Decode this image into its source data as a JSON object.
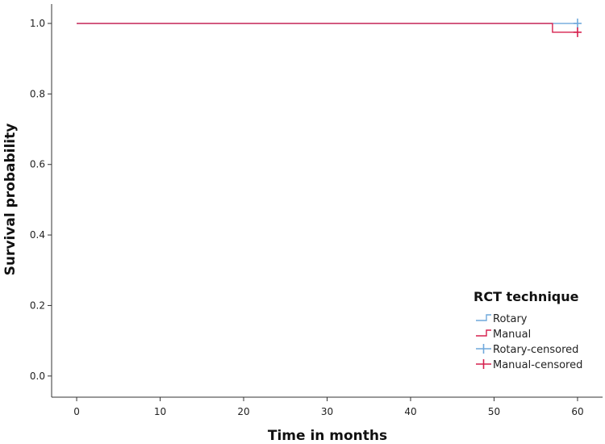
{
  "chart_data": {
    "type": "line",
    "title": "",
    "xlabel": "Time in months",
    "ylabel": "Survival probability",
    "xlim": [
      -3,
      63
    ],
    "ylim": [
      -0.06,
      1.055
    ],
    "x_ticks": [
      0,
      10,
      20,
      30,
      40,
      50,
      60
    ],
    "y_ticks": [
      0.0,
      0.2,
      0.4,
      0.6,
      0.8,
      1.0
    ],
    "y_tick_labels": [
      "0.0",
      "0.2",
      "0.4",
      "0.6",
      "0.8",
      "1.0"
    ],
    "grid": false,
    "step": true,
    "legend": {
      "title": "RCT technique",
      "placement": "bottom-right",
      "entries": [
        "Rotary",
        "Manual",
        "Rotary-censored",
        "Manual-censored"
      ]
    },
    "series": [
      {
        "name": "Rotary",
        "color": "#6fa8dc",
        "points": [
          {
            "x": 0,
            "y": 1.0
          },
          {
            "x": 60,
            "y": 1.0
          }
        ],
        "censored": [
          {
            "x": 60,
            "y": 1.0
          }
        ]
      },
      {
        "name": "Manual",
        "color": "#d6204e",
        "points": [
          {
            "x": 0,
            "y": 1.0
          },
          {
            "x": 57,
            "y": 1.0
          },
          {
            "x": 57,
            "y": 0.975
          },
          {
            "x": 60,
            "y": 0.975
          }
        ],
        "censored": [
          {
            "x": 60,
            "y": 0.975
          }
        ]
      }
    ]
  }
}
